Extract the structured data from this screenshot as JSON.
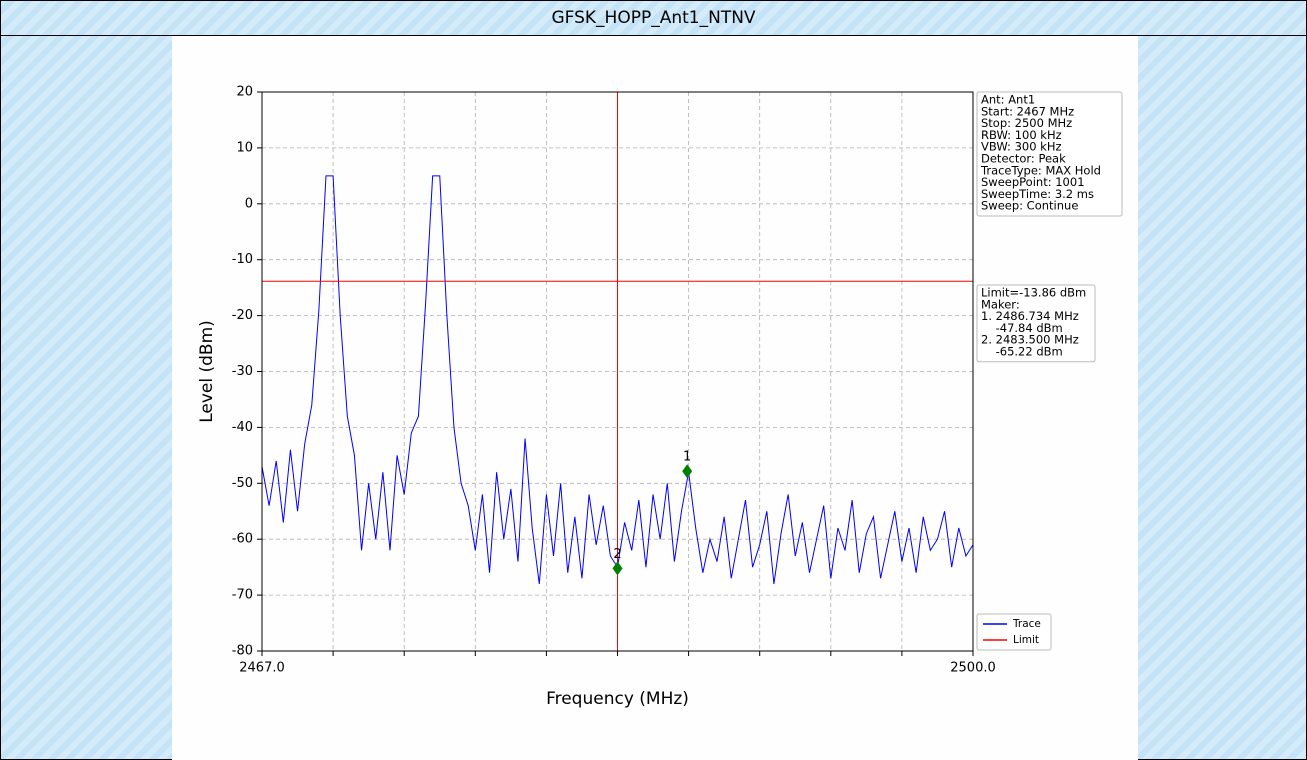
{
  "window_title": "GFSK_HOPP_Ant1_NTNV",
  "chart_data": {
    "type": "line",
    "xlabel": "Frequency (MHz)",
    "ylabel": "Level (dBm)",
    "xlim": [
      2467.0,
      2500.0
    ],
    "ylim": [
      -80,
      20
    ],
    "xticks": [
      {
        "value": 2467.0,
        "label": "2467.0"
      },
      {
        "value": 2500.0,
        "label": "2500.0"
      }
    ],
    "xminor_ticks": [
      2470.3,
      2473.6,
      2476.9,
      2480.2,
      2483.5,
      2486.8,
      2490.1,
      2493.4,
      2496.7
    ],
    "yticks": [
      20,
      10,
      0,
      -10,
      -20,
      -30,
      -40,
      -50,
      -60,
      -70,
      -80
    ],
    "grid": true,
    "legend": "lower right",
    "series": [
      {
        "name": "Trace",
        "color": "#0000ff",
        "x": [
          2467.0,
          2467.33,
          2467.66,
          2467.99,
          2468.32,
          2468.65,
          2468.98,
          2469.31,
          2469.64,
          2469.97,
          2470.3,
          2470.63,
          2470.96,
          2471.29,
          2471.62,
          2471.95,
          2472.28,
          2472.61,
          2472.94,
          2473.27,
          2473.6,
          2473.93,
          2474.26,
          2474.59,
          2474.92,
          2475.25,
          2475.58,
          2475.91,
          2476.24,
          2476.57,
          2476.9,
          2477.23,
          2477.56,
          2477.89,
          2478.22,
          2478.55,
          2478.88,
          2479.21,
          2479.54,
          2479.87,
          2480.2,
          2480.53,
          2480.86,
          2481.19,
          2481.52,
          2481.85,
          2482.18,
          2482.51,
          2482.84,
          2483.17,
          2483.5,
          2483.83,
          2484.16,
          2484.49,
          2484.82,
          2485.15,
          2485.48,
          2485.81,
          2486.14,
          2486.47,
          2486.8,
          2487.13,
          2487.46,
          2487.79,
          2488.12,
          2488.45,
          2488.78,
          2489.11,
          2489.44,
          2489.77,
          2490.1,
          2490.43,
          2490.76,
          2491.09,
          2491.42,
          2491.75,
          2492.08,
          2492.41,
          2492.74,
          2493.07,
          2493.4,
          2493.73,
          2494.06,
          2494.39,
          2494.72,
          2495.05,
          2495.38,
          2495.71,
          2496.04,
          2496.37,
          2496.7,
          2497.03,
          2497.36,
          2497.69,
          2498.02,
          2498.35,
          2498.68,
          2499.01,
          2499.34,
          2499.67,
          2500.0
        ],
        "values": [
          -47,
          -54,
          -46,
          -57,
          -44,
          -55,
          -43,
          -36,
          -19,
          5,
          5,
          -20,
          -38,
          -45,
          -62,
          -50,
          -60,
          -48,
          -62,
          -45,
          -52,
          -41,
          -38,
          -18,
          5,
          5,
          -20,
          -40,
          -50,
          -54,
          -62,
          -52,
          -66,
          -48,
          -60,
          -51,
          -64,
          -42,
          -58,
          -68,
          -52,
          -63,
          -50,
          -66,
          -56,
          -67,
          -52,
          -61,
          -54,
          -63,
          -65,
          -57,
          -62,
          -53,
          -65,
          -52,
          -60,
          -50,
          -64,
          -55,
          -48,
          -58,
          -66,
          -60,
          -64,
          -56,
          -67,
          -60,
          -53,
          -65,
          -61,
          -55,
          -68,
          -59,
          -52,
          -63,
          -57,
          -66,
          -60,
          -54,
          -67,
          -58,
          -62,
          -53,
          -66,
          -59,
          -56,
          -67,
          -61,
          -55,
          -64,
          -58,
          -66,
          -56,
          -62,
          -60,
          -55,
          -65,
          -58,
          -63,
          -61
        ]
      }
    ],
    "limit": {
      "name": "Limit",
      "color": "#ff0000",
      "value": -13.86
    },
    "vline_x": 2483.5,
    "markers": [
      {
        "label": "1",
        "x": 2486.734,
        "y": -47.84
      },
      {
        "label": "2",
        "x": 2483.5,
        "y": -65.22
      }
    ],
    "info": [
      "Ant: Ant1",
      "Start: 2467 MHz",
      "Stop: 2500 MHz",
      "RBW: 100 kHz",
      "VBW: 300 kHz",
      "Detector: Peak",
      "TraceType: MAX Hold",
      "SweepPoint: 1001",
      "SweepTime: 3.2 ms",
      "Sweep: Continue"
    ],
    "marker_info": [
      "Limit=-13.86 dBm",
      "Maker:",
      "1. 2486.734 MHz",
      "    -47.84 dBm",
      "2. 2483.500 MHz",
      "    -65.22 dBm"
    ]
  }
}
